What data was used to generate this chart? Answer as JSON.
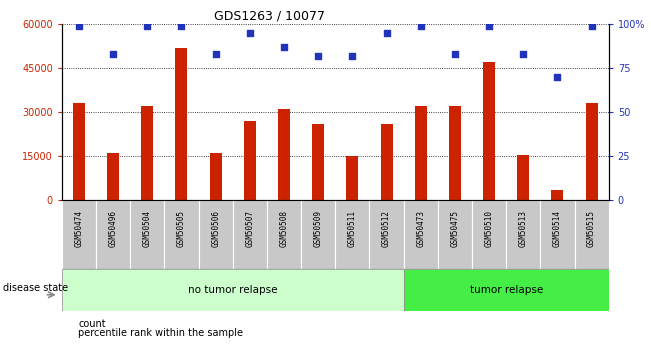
{
  "title": "GDS1263 / 10077",
  "samples": [
    "GSM50474",
    "GSM50496",
    "GSM50504",
    "GSM50505",
    "GSM50506",
    "GSM50507",
    "GSM50508",
    "GSM50509",
    "GSM50511",
    "GSM50512",
    "GSM50473",
    "GSM50475",
    "GSM50510",
    "GSM50513",
    "GSM50514",
    "GSM50515"
  ],
  "counts": [
    33000,
    16000,
    32000,
    52000,
    16000,
    27000,
    31000,
    26000,
    15000,
    26000,
    32000,
    32000,
    47000,
    15500,
    3500,
    33000
  ],
  "percentiles": [
    99,
    83,
    99,
    99,
    83,
    95,
    87,
    82,
    82,
    95,
    99,
    83,
    99,
    83,
    70,
    99
  ],
  "bar_color": "#CC2200",
  "dot_color": "#2233BB",
  "no_tumor_count": 10,
  "tumor_count": 6,
  "no_tumor_label": "no tumor relapse",
  "tumor_label": "tumor relapse",
  "no_tumor_color": "#CCFFCC",
  "tumor_color": "#44EE44",
  "disease_state_label": "disease state",
  "ylim_left": [
    0,
    60000
  ],
  "ylim_right": [
    0,
    100
  ],
  "yticks_left": [
    0,
    15000,
    30000,
    45000,
    60000
  ],
  "ytick_labels_left": [
    "0",
    "15000",
    "30000",
    "45000",
    "60000"
  ],
  "yticks_right": [
    0,
    25,
    50,
    75,
    100
  ],
  "ytick_labels_right": [
    "0",
    "25",
    "50",
    "75",
    "100%"
  ],
  "legend_count_label": "count",
  "legend_pct_label": "percentile rank within the sample"
}
